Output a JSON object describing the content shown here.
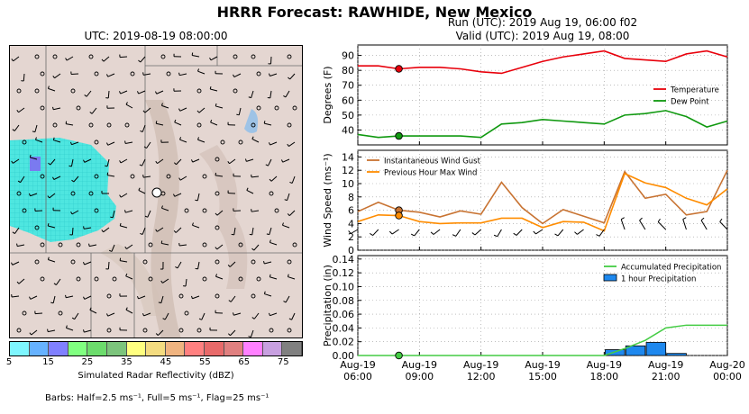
{
  "title": "HRRR Forecast: RAWHIDE, New Mexico",
  "map": {
    "title": "UTC: 2019-08-19 08:00:00",
    "colorbar": {
      "label": "Simulated Radar Reflectivity (dBZ)",
      "ticks": [
        "5",
        "15",
        "25",
        "35",
        "45",
        "55",
        "65",
        "75"
      ],
      "colors": [
        "#7ef6ff",
        "#66b2ff",
        "#8080ff",
        "#80ff80",
        "#6cdc6c",
        "#7cc47c",
        "#ffff80",
        "#f4dc80",
        "#f0b480",
        "#ff8080",
        "#e86a6a",
        "#e08080",
        "#ff80ff",
        "#c8a0e0",
        "#808080"
      ]
    },
    "barb_note": "Barbs: Half=2.5 ms⁻¹, Full=5 ms⁻¹, Flag=25 ms⁻¹"
  },
  "run": {
    "line1": "Run (UTC): 2019 Aug 19, 06:00 f02",
    "line2": "Valid (UTC): 2019 Aug 19, 08:00"
  },
  "chart_data": [
    {
      "type": "line",
      "ylabel": "Degrees (F)",
      "ylim": [
        30,
        97
      ],
      "yticks": [
        40,
        50,
        60,
        70,
        80,
        90
      ],
      "x": [
        0,
        1,
        2,
        3,
        4,
        5,
        6,
        7,
        8,
        9,
        10,
        11,
        12,
        13,
        14,
        15,
        16,
        17,
        18
      ],
      "series": [
        {
          "name": "Temperature",
          "color": "#e8000b",
          "values": [
            83,
            83,
            81,
            82,
            82,
            81,
            79,
            78,
            82,
            86,
            89,
            91,
            93,
            88,
            87,
            86,
            91,
            93,
            89
          ]
        },
        {
          "name": "Dew Point",
          "color": "#109910",
          "values": [
            37,
            35,
            36,
            36,
            36,
            36,
            35,
            44,
            45,
            47,
            46,
            45,
            44,
            50,
            51,
            53,
            49,
            42,
            46
          ]
        }
      ],
      "marker_x": 2,
      "legend": "center-right",
      "grid": true
    },
    {
      "type": "line",
      "ylabel": "Wind Speed (ms⁻¹)",
      "ylim": [
        0,
        15
      ],
      "yticks": [
        0,
        2,
        4,
        6,
        8,
        10,
        12,
        14
      ],
      "x": [
        0,
        1,
        2,
        3,
        4,
        5,
        6,
        7,
        8,
        9,
        10,
        11,
        12,
        13,
        14,
        15,
        16,
        17,
        18
      ],
      "series": [
        {
          "name": "Instantaneous Wind Gust",
          "color": "#c87332",
          "values": [
            5.8,
            7.2,
            6.0,
            5.7,
            5.0,
            5.9,
            5.4,
            10.2,
            6.4,
            4.0,
            6.1,
            5.1,
            4.1,
            11.8,
            7.8,
            8.4,
            5.3,
            5.8,
            12.0
          ]
        },
        {
          "name": "Previous Hour Max Wind",
          "color": "#ff8c00",
          "values": [
            4.3,
            5.3,
            5.2,
            4.3,
            4.0,
            4.1,
            4.1,
            4.8,
            4.8,
            3.4,
            4.3,
            4.2,
            2.9,
            11.5,
            10.1,
            9.4,
            7.8,
            6.8,
            9.2
          ]
        }
      ],
      "marker_x": 2,
      "legend": "top-left",
      "grid": true
    },
    {
      "type": "bar",
      "ylabel": "Precipitation (in)",
      "ylim": [
        0,
        0.145
      ],
      "yticks": [
        "0.00",
        "0.02",
        "0.04",
        "0.06",
        "0.08",
        "0.10",
        "0.12",
        "0.14"
      ],
      "x": [
        0,
        1,
        2,
        3,
        4,
        5,
        6,
        7,
        8,
        9,
        10,
        11,
        12,
        13,
        14,
        15,
        16,
        17,
        18
      ],
      "series": [
        {
          "name": "Accumulated Precipitation",
          "color": "#44cc44",
          "values": [
            0,
            0,
            0,
            0,
            0,
            0,
            0,
            0,
            0,
            0,
            0,
            0,
            0,
            0.01,
            0.022,
            0.04,
            0.044,
            0.044,
            0.044
          ]
        },
        {
          "name": "1 hour Precipitation",
          "color": "#1e88ee",
          "values": [
            0,
            0,
            0,
            0,
            0,
            0,
            0,
            0,
            0,
            0,
            0,
            0,
            0,
            0.0085,
            0.014,
            0.019,
            0.003,
            0,
            0
          ]
        }
      ],
      "marker_x": 2,
      "legend": "top-right",
      "grid": true,
      "xticks": [
        {
          "x": 0,
          "l1": "Aug-19",
          "l2": "06:00"
        },
        {
          "x": 3,
          "l1": "Aug-19",
          "l2": "09:00"
        },
        {
          "x": 6,
          "l1": "Aug-19",
          "l2": "12:00"
        },
        {
          "x": 9,
          "l1": "Aug-19",
          "l2": "15:00"
        },
        {
          "x": 12,
          "l1": "Aug-19",
          "l2": "18:00"
        },
        {
          "x": 15,
          "l1": "Aug-19",
          "l2": "21:00"
        },
        {
          "x": 18,
          "l1": "Aug-20",
          "l2": "00:00"
        }
      ]
    }
  ]
}
